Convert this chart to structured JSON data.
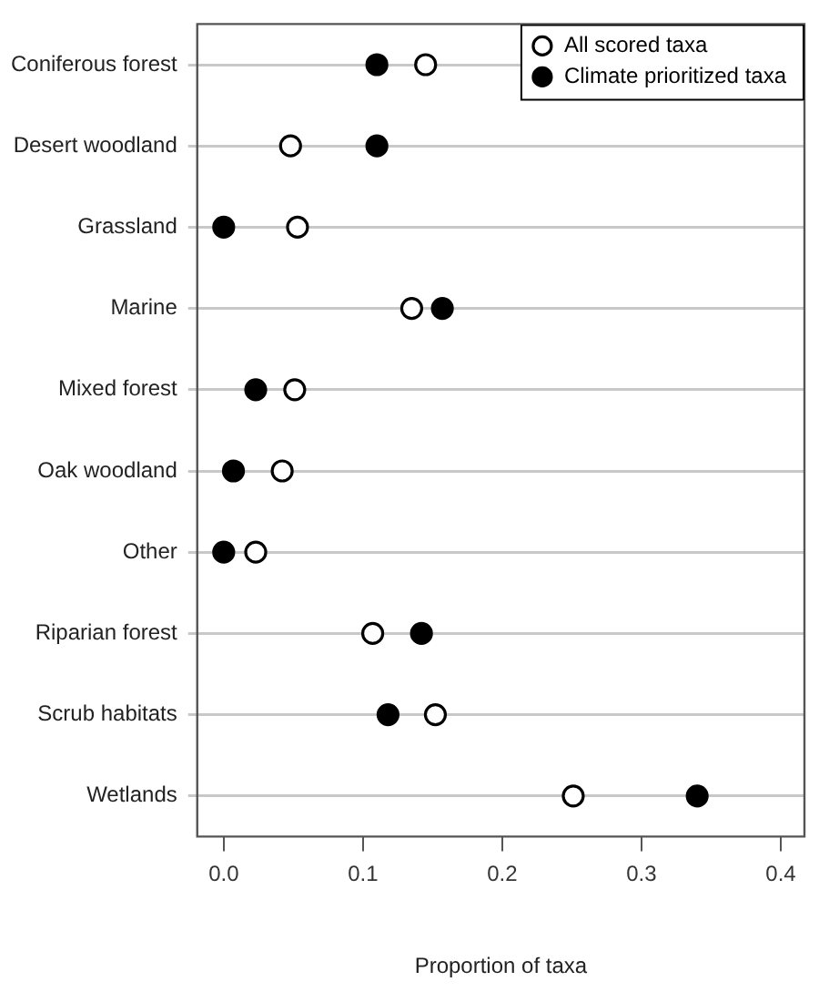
{
  "chart_data": {
    "type": "scatter",
    "orientation": "horizontal",
    "xlabel": "Proportion of taxa",
    "categories": [
      "Coniferous forest",
      "Desert woodland",
      "Grassland",
      "Marine",
      "Mixed forest",
      "Oak woodland",
      "Other",
      "Riparian forest",
      "Scrub habitats",
      "Wetlands"
    ],
    "series": [
      {
        "name": "All scored taxa",
        "color": "#ffffff",
        "values": [
          0.145,
          0.048,
          0.053,
          0.135,
          0.051,
          0.042,
          0.023,
          0.107,
          0.152,
          0.251
        ]
      },
      {
        "name": "Climate prioritized taxa",
        "color": "#000000",
        "values": [
          0.11,
          0.11,
          0.0,
          0.157,
          0.023,
          0.007,
          0.0,
          0.142,
          0.118,
          0.34
        ]
      }
    ],
    "xlim": [
      -0.019,
      0.417
    ],
    "xticks": [
      {
        "value": 0,
        "label": "0.0"
      },
      0.1,
      0.2,
      0.3,
      0.4
    ],
    "grid": "y",
    "legend": "top right",
    "marker": "circle"
  }
}
